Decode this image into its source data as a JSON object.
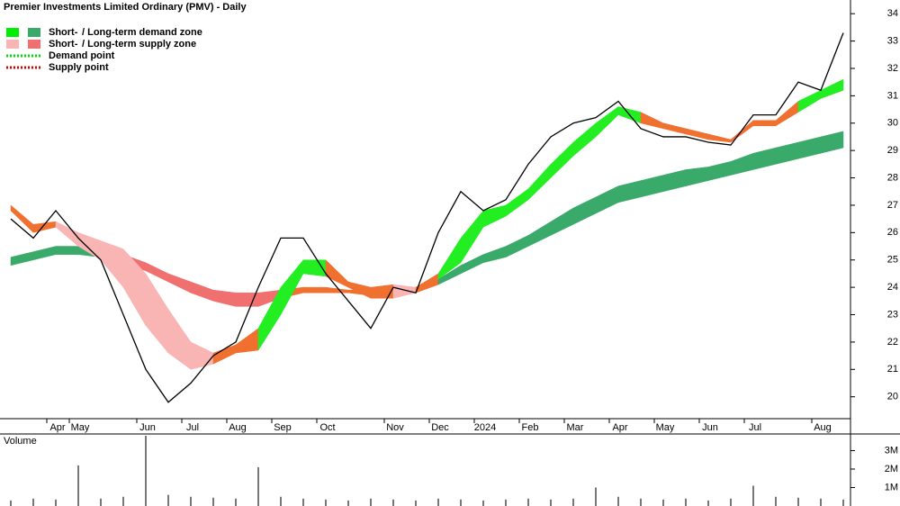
{
  "chart_data": {
    "type": "stock",
    "title": "Premier Investments Limited Ordinary (PMV) - Daily",
    "legend": [
      {
        "prefix": "Short-",
        "text": "/ Long-term demand zone",
        "colors": [
          "#00ee00",
          "#3aaa6a"
        ]
      },
      {
        "prefix": "Short-",
        "text": "/ Long-term supply zone",
        "colors": [
          "#f9b4b4",
          "#f07070"
        ]
      },
      {
        "text": "Demand point",
        "color": "#00dd00"
      },
      {
        "text": "Supply point",
        "color": "#dd0000"
      }
    ],
    "categories": [
      null,
      null,
      "Apr",
      "May",
      null,
      null,
      "Jun",
      null,
      "Jul",
      null,
      "Aug",
      null,
      "Sep",
      null,
      "Oct",
      null,
      null,
      "Nov",
      null,
      "Dec",
      null,
      "2024",
      null,
      "Feb",
      null,
      "Mar",
      null,
      "Apr",
      null,
      "May",
      null,
      "Jun",
      null,
      "Jul",
      null,
      null,
      "Aug",
      null
    ],
    "close": [
      26.5,
      25.8,
      26.8,
      25.8,
      25.0,
      23.0,
      21.0,
      19.8,
      20.5,
      21.5,
      22.0,
      24.0,
      25.8,
      25.8,
      24.5,
      23.5,
      22.5,
      24.0,
      23.8,
      26.0,
      27.5,
      26.8,
      27.2,
      28.5,
      29.5,
      30.0,
      30.2,
      30.8,
      29.8,
      29.5,
      29.5,
      29.3,
      29.2,
      30.3,
      30.3,
      31.5,
      31.2,
      33.3
    ],
    "short_zone": {
      "upper": [
        27.0,
        26.3,
        26.4,
        26.0,
        25.7,
        25.4,
        24.5,
        23.2,
        22.0,
        21.6,
        21.9,
        22.5,
        24.0,
        25.0,
        25.0,
        24.2,
        24.0,
        24.1,
        24.0,
        24.5,
        25.8,
        26.8,
        27.0,
        27.6,
        28.5,
        29.3,
        30.0,
        30.6,
        30.4,
        30.0,
        29.8,
        29.6,
        29.4,
        30.1,
        30.1,
        30.8,
        31.2,
        31.6
      ],
      "lower": [
        26.8,
        26.0,
        26.2,
        25.5,
        25.0,
        24.0,
        22.6,
        21.6,
        21.0,
        21.2,
        21.6,
        21.7,
        23.0,
        24.5,
        24.4,
        24.0,
        23.6,
        23.6,
        23.8,
        24.3,
        24.9,
        26.2,
        26.6,
        27.2,
        28.0,
        28.8,
        29.5,
        30.3,
        30.0,
        29.8,
        29.6,
        29.4,
        29.3,
        29.9,
        29.9,
        30.4,
        30.9,
        31.2
      ],
      "colors": [
        "#f07030",
        "#f07030",
        "#f9b4b4",
        "#f9b4b4",
        "#f9b4b4",
        "#f9b4b4",
        "#f9b4b4",
        "#f9b4b4",
        "#f9b4b4",
        "#f07030",
        "#f07030",
        "#22ee22",
        "#22ee22",
        "#22ee22",
        "#f07030",
        "#f07030",
        "#f07030",
        "#f9b4b4",
        "#f07030",
        "#22ee22",
        "#22ee22",
        "#22ee22",
        "#22ee22",
        "#22ee22",
        "#22ee22",
        "#22ee22",
        "#22ee22",
        "#22ee22",
        "#f07030",
        "#f07030",
        "#f07030",
        "#f07030",
        "#f07030",
        "#f07030",
        "#f07030",
        "#22ee22",
        "#22ee22",
        "#22ee22"
      ]
    },
    "long_zone": {
      "upper": [
        25.1,
        25.3,
        25.5,
        25.5,
        25.4,
        25.2,
        24.9,
        24.5,
        24.2,
        23.9,
        23.8,
        23.8,
        23.9,
        24.0,
        24.0,
        23.9,
        23.9,
        23.9,
        24.0,
        24.3,
        24.8,
        25.2,
        25.5,
        25.9,
        26.4,
        26.9,
        27.3,
        27.7,
        27.9,
        28.1,
        28.3,
        28.4,
        28.6,
        28.9,
        29.1,
        29.3,
        29.5,
        29.7
      ],
      "lower": [
        24.8,
        25.0,
        25.2,
        25.2,
        25.1,
        24.9,
        24.6,
        24.2,
        23.8,
        23.5,
        23.3,
        23.3,
        23.6,
        23.8,
        23.8,
        23.8,
        23.7,
        23.7,
        23.8,
        24.1,
        24.5,
        24.9,
        25.1,
        25.5,
        25.9,
        26.3,
        26.7,
        27.1,
        27.3,
        27.5,
        27.7,
        27.9,
        28.1,
        28.3,
        28.5,
        28.7,
        28.9,
        29.1
      ],
      "colors": [
        "#3aaa6a",
        "#3aaa6a",
        "#3aaa6a",
        "#3aaa6a",
        "#3aaa6a",
        "#f07070",
        "#f07070",
        "#f07070",
        "#f07070",
        "#f07070",
        "#f07070",
        "#f07070",
        "#f07030",
        "#f07030",
        "#f07030",
        "#f07030",
        "#f07030",
        "#f07030",
        "#f07030",
        "#3aaa6a",
        "#3aaa6a",
        "#3aaa6a",
        "#3aaa6a",
        "#3aaa6a",
        "#3aaa6a",
        "#3aaa6a",
        "#3aaa6a",
        "#3aaa6a",
        "#3aaa6a",
        "#3aaa6a",
        "#3aaa6a",
        "#3aaa6a",
        "#3aaa6a",
        "#3aaa6a",
        "#3aaa6a",
        "#3aaa6a",
        "#3aaa6a",
        "#3aaa6a"
      ]
    },
    "ylim": [
      19.2,
      34.5
    ],
    "yticks": [
      20,
      21,
      22,
      23,
      24,
      25,
      26,
      27,
      28,
      29,
      30,
      31,
      32,
      33,
      34
    ],
    "volume_label": "Volume",
    "volume": [
      300000,
      400000,
      350000,
      2200000,
      400000,
      500000,
      3800000,
      600000,
      500000,
      450000,
      400000,
      2100000,
      500000,
      400000,
      350000,
      300000,
      400000,
      350000,
      300000,
      400000,
      350000,
      300000,
      350000,
      400000,
      350000,
      400000,
      1000000,
      500000,
      400000,
      350000,
      400000,
      300000,
      400000,
      1100000,
      500000,
      450000,
      400000,
      350000
    ],
    "vlim": [
      0,
      3900000
    ],
    "vticks": [
      {
        "value": 1000000,
        "label": "1M"
      },
      {
        "value": 2000000,
        "label": "2M"
      },
      {
        "value": 3000000,
        "label": "3M"
      }
    ]
  }
}
